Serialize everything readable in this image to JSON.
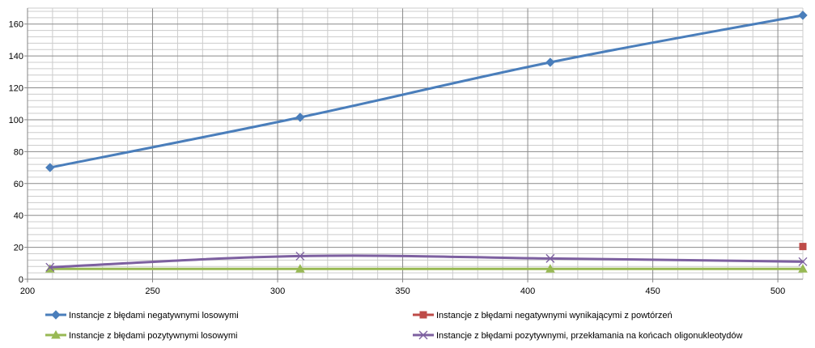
{
  "chart_data": {
    "type": "line",
    "title": "",
    "xlabel": "",
    "ylabel": "",
    "xlim": [
      200,
      510
    ],
    "ylim": [
      0,
      170
    ],
    "x_ticks": [
      200,
      250,
      300,
      350,
      400,
      450,
      500
    ],
    "y_ticks": [
      0,
      20,
      40,
      60,
      80,
      100,
      120,
      140,
      160
    ],
    "x_minor_step": 10,
    "y_minor_step": 4,
    "grid": true,
    "legend_position": "bottom",
    "smooth": true,
    "series": [
      {
        "name": "Instancje z błędami negatywnymi losowymi",
        "color": "#4a7ebb",
        "marker": "diamond",
        "points": [
          [
            209,
            70
          ],
          [
            309,
            101.5
          ],
          [
            409,
            136
          ],
          [
            510,
            165.5
          ]
        ]
      },
      {
        "name": "Instancje z błędami negatywnymi wynikającymi z powtórzeń",
        "color": "#be4b48",
        "marker": "square",
        "points": [
          [
            510,
            20.5
          ]
        ]
      },
      {
        "name": "Instancje z błędami pozytywnymi losowymi",
        "color": "#98b954",
        "marker": "triangle",
        "points": [
          [
            209,
            6.5
          ],
          [
            309,
            6.5
          ],
          [
            409,
            6.5
          ],
          [
            510,
            6.5
          ]
        ]
      },
      {
        "name": "Instancje z błędami pozytywnymi, przekłamania na końcach oligonukleotydów",
        "color": "#7d60a0",
        "marker": "x",
        "points": [
          [
            209,
            7.5
          ],
          [
            309,
            14.5
          ],
          [
            409,
            13
          ],
          [
            510,
            11
          ]
        ]
      }
    ]
  }
}
